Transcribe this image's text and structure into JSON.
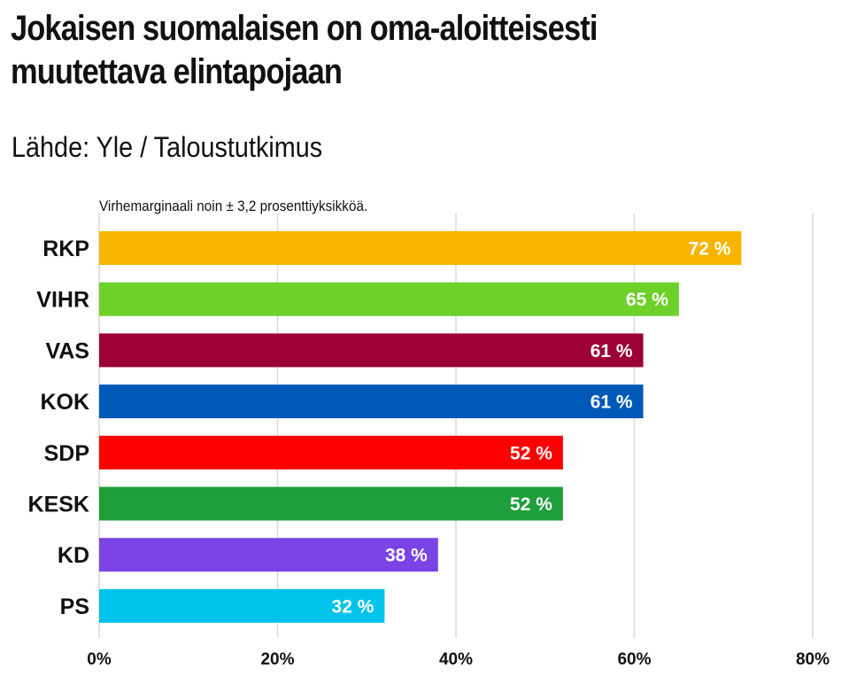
{
  "chart_data": {
    "type": "bar",
    "orientation": "horizontal",
    "title": "Jokaisen suomalaisen on oma-aloitteisesti muutettava elintapojaan",
    "subtitle": "Lähde: Yle / Taloustutkimus",
    "note": "Virhemarginaali noin ± 3,2 prosenttiyksikköä.",
    "categories": [
      "RKP",
      "VIHR",
      "VAS",
      "KOK",
      "SDP",
      "KESK",
      "KD",
      "PS"
    ],
    "values": [
      72,
      65,
      61,
      61,
      52,
      52,
      38,
      32
    ],
    "value_labels": [
      "72 %",
      "65 %",
      "61 %",
      "61 %",
      "52 %",
      "52 %",
      "38 %",
      "32 %"
    ],
    "colors": [
      "#f7b500",
      "#6ed12a",
      "#9b0036",
      "#0059b8",
      "#ff0000",
      "#1f9e3c",
      "#7b44e6",
      "#00c3ec"
    ],
    "xlim": [
      0,
      80
    ],
    "xticks": [
      0,
      20,
      40,
      60,
      80
    ],
    "xtick_labels": [
      "0%",
      "20%",
      "40%",
      "60%",
      "80%"
    ],
    "grid": true,
    "xlabel": "",
    "ylabel": ""
  }
}
